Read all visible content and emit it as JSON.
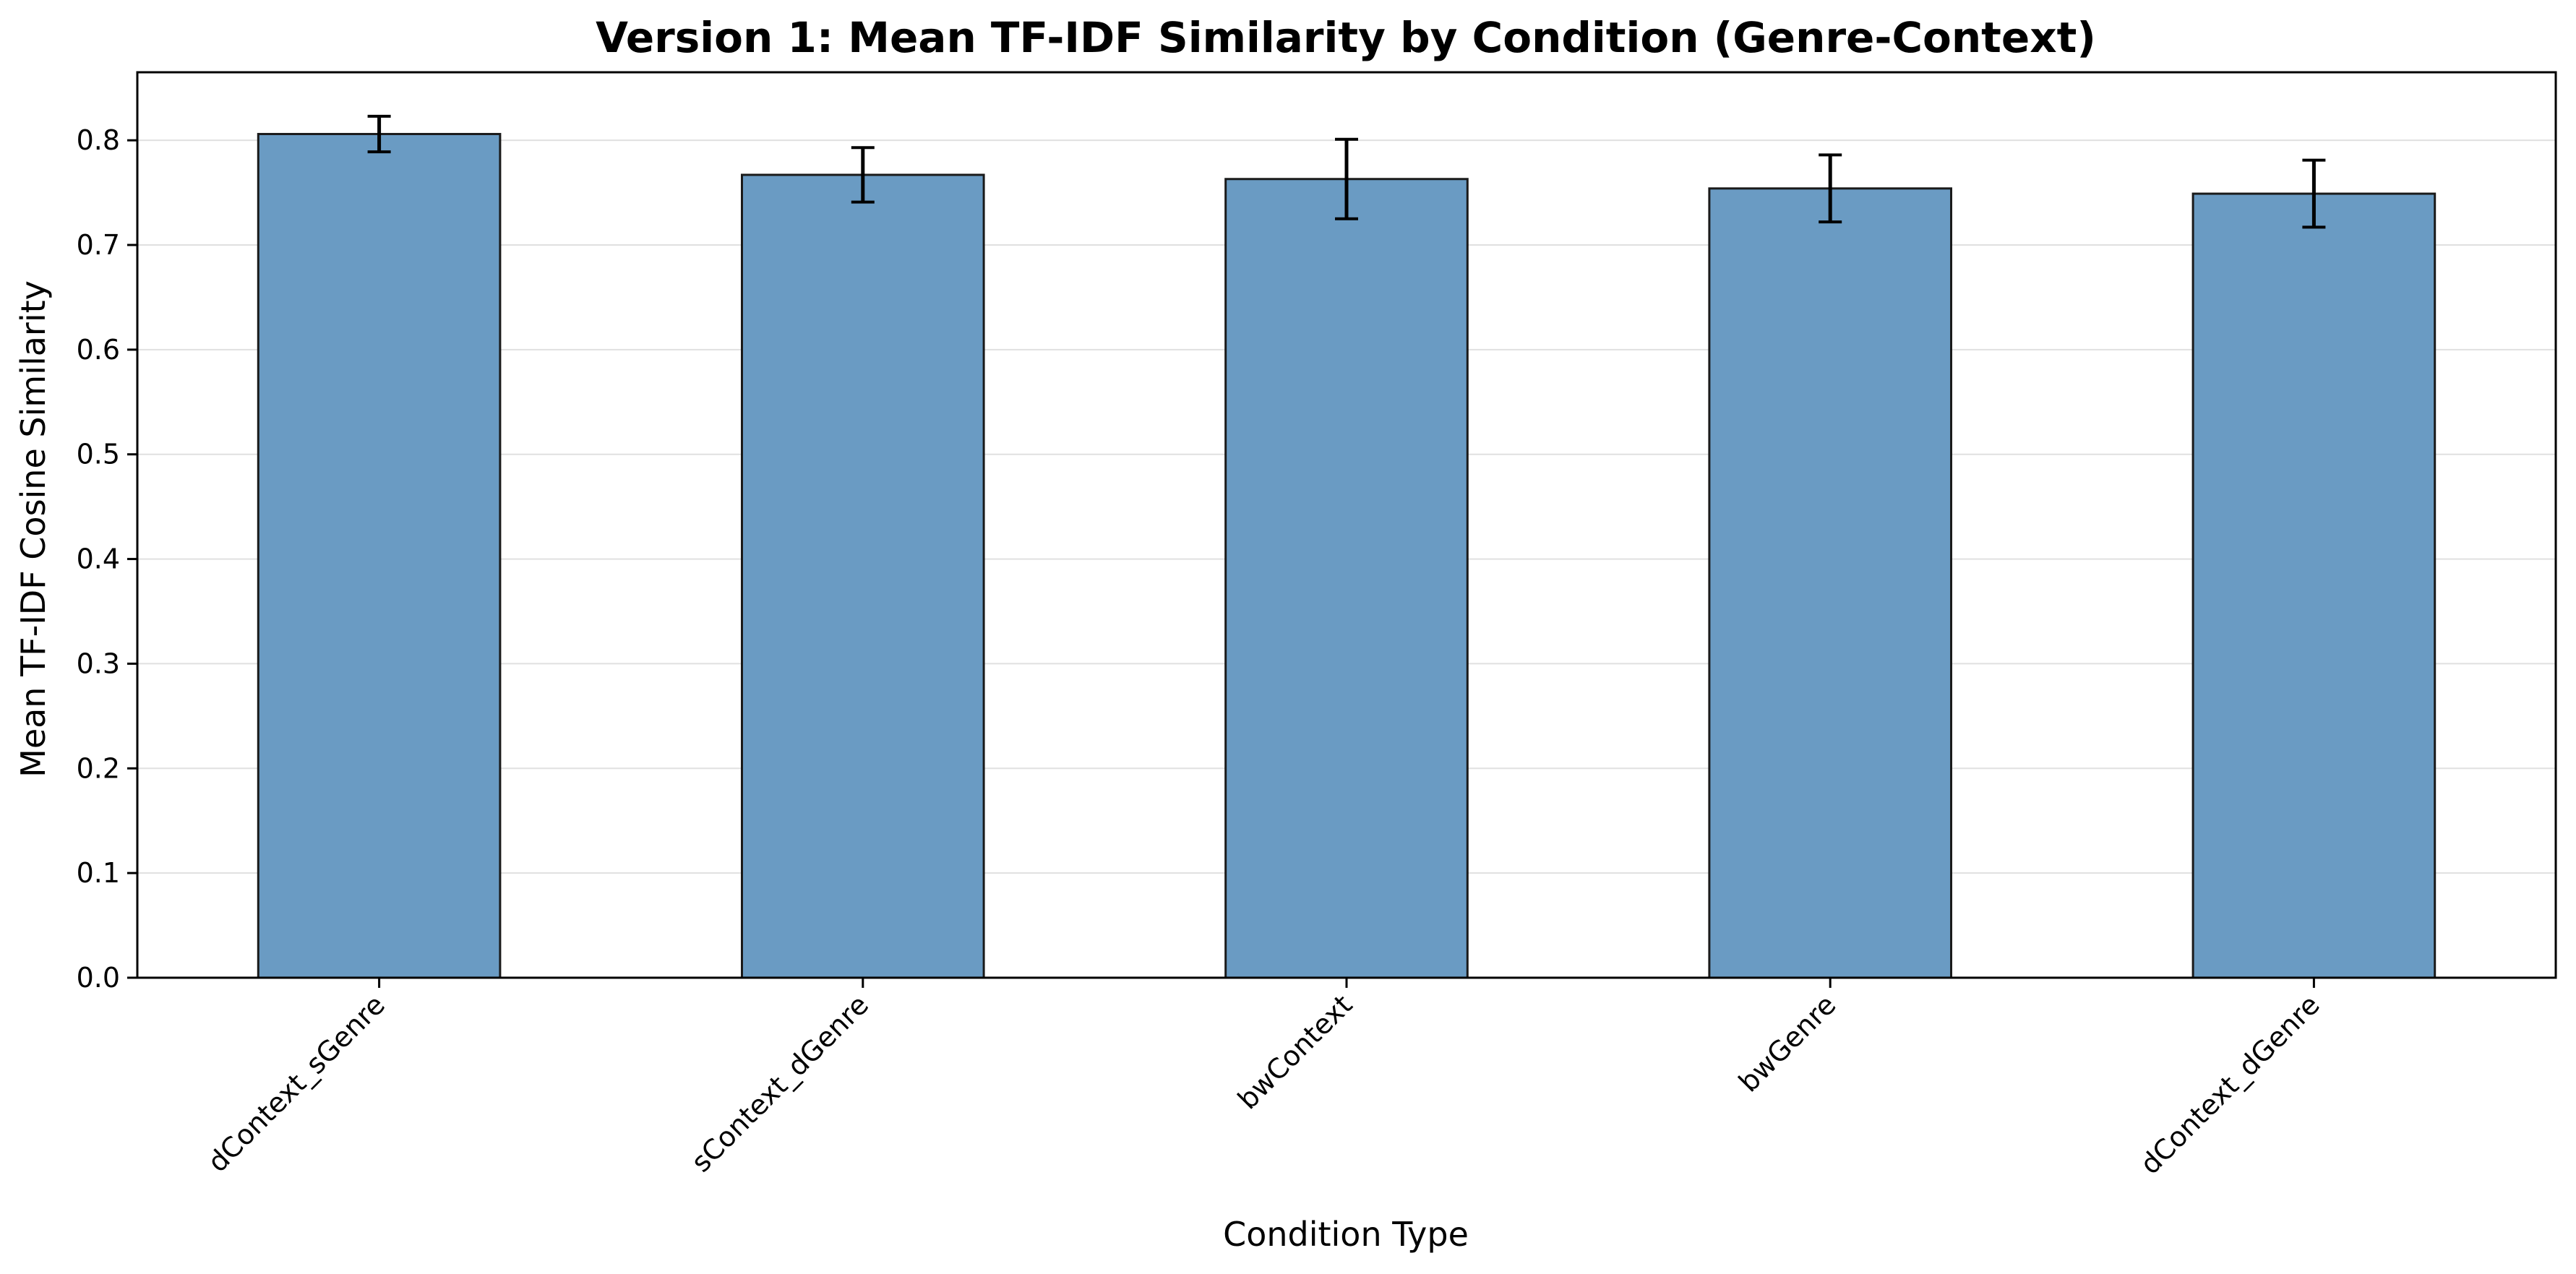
{
  "chart_data": {
    "type": "bar",
    "title": "Version 1: Mean TF-IDF Similarity by Condition (Genre-Context)",
    "xlabel": "Condition Type",
    "ylabel": "Mean TF-IDF Cosine Similarity",
    "categories": [
      "dContext_sGenre",
      "sContext_dGenre",
      "bwContext",
      "bwGenre",
      "dContext_dGenre"
    ],
    "values": [
      0.806,
      0.767,
      0.763,
      0.754,
      0.749
    ],
    "errors": [
      0.017,
      0.026,
      0.038,
      0.032,
      0.032
    ],
    "ylim": [
      0,
      0.865
    ],
    "yticks": [
      "0.0",
      "0.1",
      "0.2",
      "0.3",
      "0.4",
      "0.5",
      "0.6",
      "0.7",
      "0.8"
    ],
    "grid": "y",
    "bar_color": "#6a9bc3",
    "edge_color": "#1a1a1a",
    "grid_color": "#e0e0e0"
  }
}
